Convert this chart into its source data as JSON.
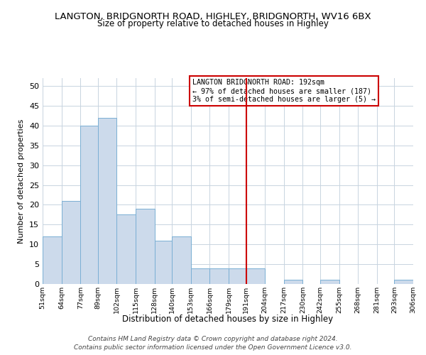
{
  "title": "LANGTON, BRIDGNORTH ROAD, HIGHLEY, BRIDGNORTH, WV16 6BX",
  "subtitle": "Size of property relative to detached houses in Highley",
  "xlabel": "Distribution of detached houses by size in Highley",
  "ylabel": "Number of detached properties",
  "bin_edges": [
    51,
    64,
    77,
    89,
    102,
    115,
    128,
    140,
    153,
    166,
    179,
    191,
    204,
    217,
    230,
    242,
    255,
    268,
    281,
    293,
    306
  ],
  "bar_heights": [
    12,
    21,
    40,
    42,
    17.5,
    19,
    11,
    12,
    4,
    4,
    4,
    4,
    0,
    1,
    0,
    1,
    0,
    0,
    0,
    1
  ],
  "bar_color": "#ccdaeb",
  "bar_edgecolor": "#7aafd4",
  "vline_x": 191,
  "vline_color": "#cc0000",
  "annotation_lines": [
    "LANGTON BRIDGNORTH ROAD: 192sqm",
    "← 97% of detached houses are smaller (187)",
    "3% of semi-detached houses are larger (5) →"
  ],
  "ylim": [
    0,
    52
  ],
  "yticks": [
    0,
    5,
    10,
    15,
    20,
    25,
    30,
    35,
    40,
    45,
    50
  ],
  "tick_labels": [
    "51sqm",
    "64sqm",
    "77sqm",
    "89sqm",
    "102sqm",
    "115sqm",
    "128sqm",
    "140sqm",
    "153sqm",
    "166sqm",
    "179sqm",
    "191sqm",
    "204sqm",
    "217sqm",
    "230sqm",
    "242sqm",
    "255sqm",
    "268sqm",
    "281sqm",
    "293sqm",
    "306sqm"
  ],
  "footer_line1": "Contains HM Land Registry data © Crown copyright and database right 2024.",
  "footer_line2": "Contains public sector information licensed under the Open Government Licence v3.0.",
  "background_color": "#ffffff",
  "grid_color": "#c8d4e0"
}
